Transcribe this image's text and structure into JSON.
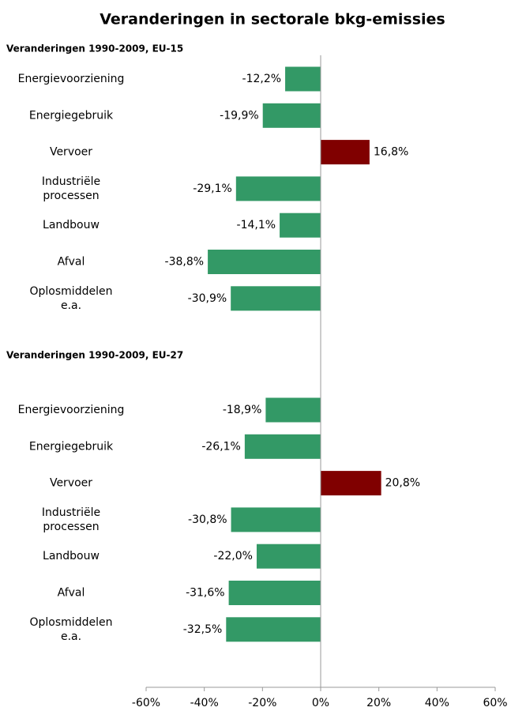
{
  "chart_data": {
    "type": "bar",
    "orientation": "horizontal",
    "title": "Veranderingen in sectorale bkg-emissies",
    "xlim": [
      -60,
      60
    ],
    "xticks": [
      {
        "value": -60,
        "label": "-60%"
      },
      {
        "value": -40,
        "label": "-40%"
      },
      {
        "value": -20,
        "label": "-20%"
      },
      {
        "value": 0,
        "label": "0%"
      },
      {
        "value": 20,
        "label": "20%"
      },
      {
        "value": 40,
        "label": "40%"
      },
      {
        "value": 60,
        "label": "60%"
      }
    ],
    "groups": [
      {
        "subtitle": "Veranderingen 1990-2009, EU-15",
        "categories": [
          "Energievoorziening",
          "Energiegebruik",
          "Vervoer",
          "Industriële\nprocessen",
          "Landbouw",
          "Afval",
          "Oplosmiddelen\ne.a."
        ],
        "values": [
          -12.2,
          -19.9,
          16.8,
          -29.1,
          -14.1,
          -38.8,
          -30.9
        ],
        "value_labels": [
          "-12,2%",
          "-19,9%",
          "16,8%",
          "-29,1%",
          "-14,1%",
          "-38,8%",
          "-30,9%"
        ],
        "colors": [
          "#339966",
          "#339966",
          "#800000",
          "#339966",
          "#339966",
          "#339966",
          "#339966"
        ]
      },
      {
        "subtitle": "Veranderingen 1990-2009, EU-27",
        "categories": [
          "Energievoorziening",
          "Energiegebruik",
          "Vervoer",
          "Industriële\nprocessen",
          "Landbouw",
          "Afval",
          "Oplosmiddelen\ne.a."
        ],
        "values": [
          -18.9,
          -26.1,
          20.8,
          -30.8,
          -22.0,
          -31.6,
          -32.5
        ],
        "value_labels": [
          "-18,9%",
          "-26,1%",
          "20,8%",
          "-30,8%",
          "-22,0%",
          "-31,6%",
          "-32,5%"
        ],
        "colors": [
          "#339966",
          "#339966",
          "#800000",
          "#339966",
          "#339966",
          "#339966",
          "#339966"
        ]
      }
    ]
  }
}
